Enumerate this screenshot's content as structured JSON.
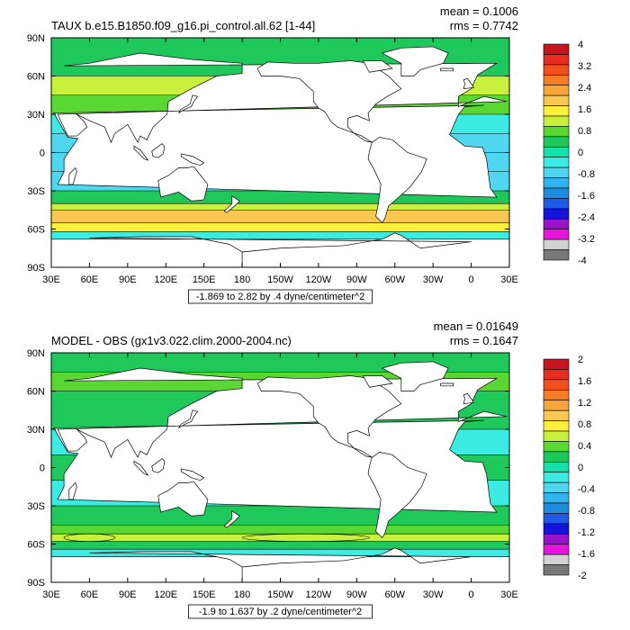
{
  "chart_data": [
    {
      "type": "heatmap",
      "title": "TAUX b.e15.B1850.f09_g16.pi_control.all.62 [1-44]",
      "stats": {
        "mean_text": "mean = 0.1006",
        "rms_text": "rms = 0.7742"
      },
      "contour_info": "-1.869 to 2.82 by .4 dyne/centimeter^2",
      "x_ticks": [
        "30E",
        "60E",
        "90E",
        "120E",
        "150E",
        "180",
        "150W",
        "120W",
        "90W",
        "60W",
        "30W",
        "0",
        "30E"
      ],
      "y_ticks": [
        "90N",
        "60N",
        "30N",
        "0",
        "30S",
        "60S",
        "90S"
      ],
      "xlim": [
        30,
        390
      ],
      "ylim": [
        -90,
        90
      ],
      "colorbar_labels": [
        "4",
        "3.2",
        "2.4",
        "1.6",
        "0.8",
        "0",
        "-0.8",
        "-1.6",
        "-2.4",
        "-3.2",
        "-4"
      ],
      "colorbar_colors": [
        "#c8141e",
        "#e62d1e",
        "#f0501e",
        "#f57d28",
        "#f9a53c",
        "#fac850",
        "#fff03c",
        "#c8f03c",
        "#5ad732",
        "#1ec85a",
        "#14e1aa",
        "#3cebe1",
        "#50d7f0",
        "#32b4f0",
        "#1e8cdc",
        "#1e5ae6",
        "#1414dc",
        "#9614c8",
        "#e614dc",
        "#d2d2d2",
        "#787878"
      ],
      "bands": [
        {
          "lat": [
            60,
            90
          ],
          "v": 0.2
        },
        {
          "lat": [
            45,
            60
          ],
          "v": 1.0
        },
        {
          "lat": [
            30,
            45
          ],
          "v": 0.8
        },
        {
          "lat": [
            15,
            30
          ],
          "v": -0.4
        },
        {
          "lat": [
            0,
            15
          ],
          "v": -0.6
        },
        {
          "lat": [
            -15,
            0
          ],
          "v": -0.8
        },
        {
          "lat": [
            -30,
            -15
          ],
          "v": -0.6
        },
        {
          "lat": [
            -40,
            -30
          ],
          "v": 0.4
        },
        {
          "lat": [
            -45,
            -40
          ],
          "v": 1.2
        },
        {
          "lat": [
            -55,
            -45
          ],
          "v": 2.0
        },
        {
          "lat": [
            -62,
            -55
          ],
          "v": 1.6
        },
        {
          "lat": [
            -68,
            -62
          ],
          "v": -0.2
        },
        {
          "lat": [
            -90,
            -68
          ],
          "v": null
        }
      ],
      "patches": [
        {
          "lon": [
            160,
            220
          ],
          "lat": [
            45,
            55
          ],
          "v": 2.0
        },
        {
          "lon": [
            318,
            340
          ],
          "lat": [
            50,
            60
          ],
          "v": 2.0
        },
        {
          "lon": [
            40,
            90
          ],
          "lat": [
            -25,
            -12
          ],
          "v": -1.2
        },
        {
          "lon": [
            190,
            250
          ],
          "lat": [
            -12,
            -3
          ],
          "v": -1.2
        }
      ]
    },
    {
      "type": "heatmap",
      "title": "MODEL - OBS (gx1v3.022.clim.2000-2004.nc)",
      "stats": {
        "mean_text": "mean = 0.01649",
        "rms_text": "rms = 0.1647"
      },
      "contour_info": "-1.9 to 1.637 by .2 dyne/centimeter^2",
      "x_ticks": [
        "30E",
        "60E",
        "90E",
        "120E",
        "150E",
        "180",
        "150W",
        "120W",
        "90W",
        "60W",
        "30W",
        "0",
        "30E"
      ],
      "y_ticks": [
        "90N",
        "60N",
        "30N",
        "0",
        "30S",
        "60S",
        "90S"
      ],
      "xlim": [
        30,
        390
      ],
      "ylim": [
        -90,
        90
      ],
      "colorbar_labels": [
        "2",
        "1.6",
        "1.2",
        "0.8",
        "0.4",
        "0",
        "-0.4",
        "-0.8",
        "-1.2",
        "-1.6",
        "-2"
      ],
      "colorbar_colors": [
        "#c8141e",
        "#e62d1e",
        "#f0501e",
        "#f57d28",
        "#f9a53c",
        "#fac850",
        "#fff03c",
        "#c8f03c",
        "#5ad732",
        "#1ec85a",
        "#14e1aa",
        "#3cebe1",
        "#50d7f0",
        "#32b4f0",
        "#1e8cdc",
        "#1e5ae6",
        "#1414dc",
        "#9614c8",
        "#e614dc",
        "#d2d2d2",
        "#787878"
      ],
      "bands": [
        {
          "lat": [
            75,
            90
          ],
          "v": 0.1
        },
        {
          "lat": [
            60,
            75
          ],
          "v": 0.3
        },
        {
          "lat": [
            30,
            60
          ],
          "v": 0.1
        },
        {
          "lat": [
            10,
            30
          ],
          "v": -0.1
        },
        {
          "lat": [
            -10,
            10
          ],
          "v": 0.1
        },
        {
          "lat": [
            -30,
            -10
          ],
          "v": -0.1
        },
        {
          "lat": [
            -45,
            -30
          ],
          "v": 0.1
        },
        {
          "lat": [
            -52,
            -45
          ],
          "v": 0.3
        },
        {
          "lat": [
            -58,
            -52
          ],
          "v": 0.5
        },
        {
          "lat": [
            -64,
            -58
          ],
          "v": 0.1
        },
        {
          "lat": [
            -70,
            -64
          ],
          "v": -0.1
        },
        {
          "lat": [
            -90,
            -70
          ],
          "v": null
        }
      ],
      "patches": [
        {
          "lon": [
            180,
            280
          ],
          "lat": [
            -58,
            -52
          ],
          "v": 0.6
        },
        {
          "lon": [
            40,
            80
          ],
          "lat": [
            -58,
            -52
          ],
          "v": 0.6
        },
        {
          "lon": [
            60,
            100
          ],
          "lat": [
            0,
            20
          ],
          "v": -0.1
        },
        {
          "lon": [
            210,
            260
          ],
          "lat": [
            -25,
            -15
          ],
          "v": -0.3
        }
      ]
    }
  ]
}
